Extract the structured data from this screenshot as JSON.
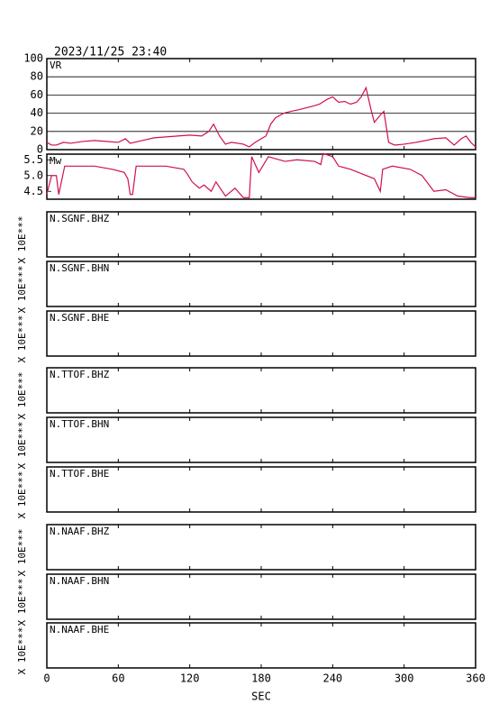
{
  "chart_data": [
    {
      "type": "line",
      "title": "2023/11/25 23:40",
      "label": "VR",
      "color": "#d0104c",
      "grid": true,
      "xlim": [
        0,
        360
      ],
      "ylim": [
        0,
        100
      ],
      "yticks": [
        0,
        20,
        40,
        60,
        80,
        100
      ],
      "x": [
        0,
        4,
        8,
        14,
        20,
        30,
        40,
        50,
        60,
        66,
        70,
        80,
        90,
        100,
        110,
        120,
        130,
        136,
        140,
        145,
        150,
        155,
        165,
        170,
        175,
        180,
        184,
        188,
        192,
        199,
        205,
        212,
        218,
        224,
        229,
        235,
        240,
        245,
        250,
        255,
        260,
        264,
        268,
        272,
        275,
        280,
        283,
        287,
        292,
        300,
        310,
        318,
        325,
        335,
        342,
        348,
        352,
        356,
        360
      ],
      "values": [
        8,
        5,
        5,
        8,
        7,
        9,
        10,
        9,
        8,
        12,
        7,
        10,
        13,
        14,
        15,
        16,
        15,
        20,
        28,
        15,
        6,
        8,
        6,
        3,
        8,
        12,
        15,
        28,
        35,
        40,
        42,
        44,
        46,
        48,
        50,
        55,
        58,
        52,
        53,
        50,
        52,
        58,
        68,
        45,
        30,
        38,
        42,
        8,
        5,
        6,
        8,
        10,
        12,
        13,
        5,
        12,
        15,
        8,
        3
      ]
    },
    {
      "type": "line",
      "label": "Mw",
      "color": "#d0104c",
      "xlim": [
        0,
        360
      ],
      "ylim": [
        4.25,
        5.68
      ],
      "yticks": [
        4.5,
        {
          "value": 5,
          "label": "5.0"
        },
        5.5
      ],
      "x": [
        0,
        4,
        8,
        10,
        15,
        40,
        55,
        65,
        68,
        70,
        72,
        75,
        100,
        115,
        118,
        122,
        128,
        132,
        138,
        142,
        150,
        158,
        165,
        170,
        172,
        178,
        186,
        200,
        210,
        225,
        230,
        232,
        240,
        245,
        255,
        265,
        275,
        280,
        282,
        290,
        305,
        315,
        325,
        335,
        345,
        355,
        360
      ],
      "values": [
        4.41,
        5.0,
        5.0,
        4.4,
        5.3,
        5.3,
        5.2,
        5.1,
        4.9,
        4.4,
        4.4,
        5.3,
        5.3,
        5.2,
        5.05,
        4.8,
        4.6,
        4.7,
        4.5,
        4.8,
        4.35,
        4.6,
        4.3,
        4.3,
        5.6,
        5.1,
        5.6,
        5.45,
        5.5,
        5.45,
        5.35,
        5.7,
        5.6,
        5.3,
        5.2,
        5.05,
        4.9,
        4.5,
        5.2,
        5.3,
        5.2,
        5.0,
        4.5,
        4.55,
        4.35,
        4.3,
        4.3
      ]
    },
    {
      "type": "trace",
      "label": "N.SGNF.BHZ",
      "ylabel": "X 10E***"
    },
    {
      "type": "trace",
      "label": "N.SGNF.BHN",
      "ylabel": "X 10E***"
    },
    {
      "type": "trace",
      "label": "N.SGNF.BHE",
      "ylabel": "X 10E***"
    },
    {
      "type": "trace",
      "label": "N.TTOF.BHZ",
      "ylabel": "X 10E***"
    },
    {
      "type": "trace",
      "label": "N.TTOF.BHN",
      "ylabel": "X 10E***"
    },
    {
      "type": "trace",
      "label": "N.TTOF.BHE",
      "ylabel": "X 10E***"
    },
    {
      "type": "trace",
      "label": "N.NAAF.BHZ",
      "ylabel": "X 10E***"
    },
    {
      "type": "trace",
      "label": "N.NAAF.BHN",
      "ylabel": "X 10E***"
    },
    {
      "type": "trace",
      "label": "N.NAAF.BHE",
      "ylabel": "X 10E***",
      "xlim": [
        0,
        360
      ],
      "xticks": [
        0,
        60,
        120,
        180,
        240,
        300,
        360
      ],
      "xlabel": "SEC"
    }
  ]
}
